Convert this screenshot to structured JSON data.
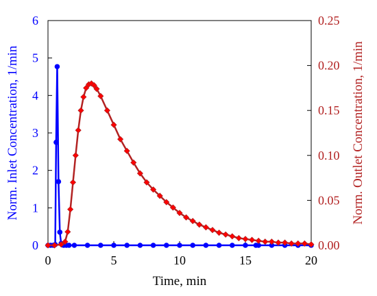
{
  "chart_data": {
    "type": "line",
    "x_axis": {
      "label": "Time, min",
      "range": [
        0,
        20
      ],
      "ticks": [
        0,
        5,
        10,
        15,
        20
      ]
    },
    "y_left": {
      "label": "Norm. Inlet Concentration, 1/min",
      "range": [
        0,
        6
      ],
      "ticks": [
        0,
        1,
        2,
        3,
        4,
        5,
        6
      ],
      "tick_labels": [
        "0",
        "1",
        "2",
        "3",
        "4",
        "5",
        "6"
      ],
      "color": "#0000ff"
    },
    "y_right": {
      "label": "Norm. Outlet Concentration, 1/min",
      "range": [
        0,
        0.25
      ],
      "ticks": [
        0,
        0.05,
        0.1,
        0.15,
        0.2,
        0.25
      ],
      "tick_labels": [
        "0.00",
        "0.05",
        "0.10",
        "0.15",
        "0.20",
        "0.25"
      ],
      "color": "#b22222"
    },
    "grid": false,
    "legend": "none",
    "series": [
      {
        "axis": "left",
        "color": "#0000ff",
        "marker": "circle",
        "x": [
          0,
          0.2,
          0.4,
          0.55,
          0.62,
          0.7,
          0.8,
          0.9,
          1.0,
          1.1,
          1.2,
          1.4,
          1.6,
          2,
          3,
          4,
          5,
          6,
          7,
          8,
          9,
          10,
          11,
          12,
          13,
          14,
          15,
          15.8,
          16,
          17,
          18,
          19,
          20
        ],
        "y": [
          0,
          0,
          0,
          0.02,
          2.75,
          4.77,
          1.7,
          0.35,
          0.05,
          0.01,
          0,
          0,
          0,
          0,
          0,
          0,
          0,
          0,
          0,
          0,
          0,
          0,
          0,
          0,
          0,
          0,
          0,
          0,
          0,
          0,
          0,
          0,
          0
        ]
      },
      {
        "axis": "right",
        "color": "#b22222",
        "marker_color": "#ff0000",
        "marker": "diamond",
        "x": [
          0,
          0.5,
          1.0,
          1.3,
          1.5,
          1.7,
          1.9,
          2.1,
          2.3,
          2.5,
          2.7,
          2.9,
          3.1,
          3.3,
          3.5,
          3.7,
          4,
          4.5,
          5,
          5.5,
          6,
          6.5,
          7,
          7.5,
          8,
          8.5,
          9,
          9.5,
          10,
          10.5,
          11,
          11.5,
          12,
          12.5,
          13,
          13.5,
          14,
          14.5,
          15,
          15.5,
          16,
          16.5,
          17,
          17.5,
          18,
          18.5,
          19,
          19.5,
          20
        ],
        "y": [
          0,
          0,
          0.001,
          0.004,
          0.015,
          0.04,
          0.07,
          0.1,
          0.128,
          0.15,
          0.165,
          0.175,
          0.179,
          0.18,
          0.178,
          0.174,
          0.166,
          0.15,
          0.134,
          0.118,
          0.105,
          0.092,
          0.08,
          0.07,
          0.062,
          0.055,
          0.048,
          0.042,
          0.036,
          0.031,
          0.027,
          0.023,
          0.02,
          0.017,
          0.014,
          0.012,
          0.01,
          0.008,
          0.007,
          0.006,
          0.005,
          0.004,
          0.004,
          0.003,
          0.003,
          0.002,
          0.002,
          0.002,
          0.001
        ]
      }
    ]
  }
}
